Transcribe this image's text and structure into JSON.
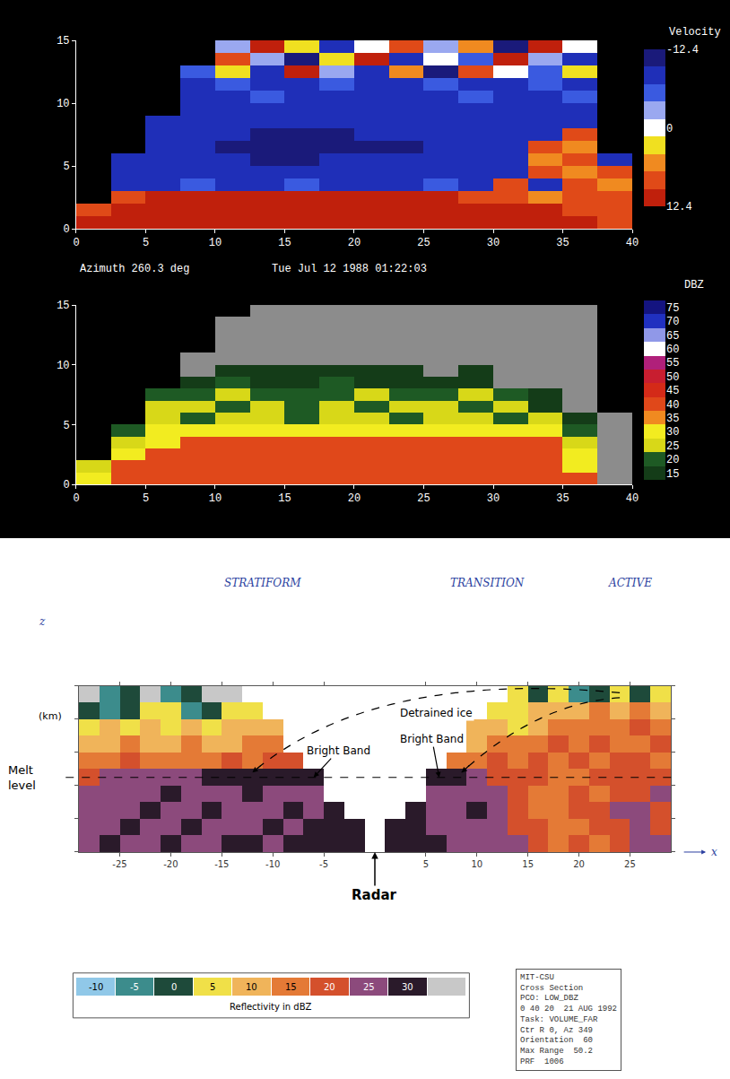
{
  "chart_data": [
    {
      "type": "heatmap",
      "x": [
        1.25,
        3.75,
        6.25,
        8.75,
        11.25,
        13.75,
        16.25,
        18.75,
        21.25,
        23.75,
        26.25,
        28.75,
        31.25,
        33.75,
        36.25,
        38.75
      ],
      "y": [
        0.5,
        1.5,
        2.5,
        3.5,
        4.5,
        5.5,
        6.5,
        7.5,
        8.5,
        9.5,
        10.5,
        11.5,
        12.5,
        13.5,
        14.5
      ],
      "z": [
        [
          10,
          10,
          10,
          10,
          10,
          10,
          10,
          10,
          10,
          10,
          10,
          10,
          10,
          10,
          10,
          8
        ],
        [
          8,
          10,
          10,
          10,
          10,
          10,
          10,
          10,
          10,
          10,
          10,
          10,
          10,
          10,
          8,
          8
        ],
        [
          null,
          8,
          10,
          10,
          10,
          10,
          10,
          10,
          10,
          10,
          10,
          8,
          8,
          5,
          8,
          8
        ],
        [
          null,
          -8,
          -8,
          -5,
          -8,
          -8,
          -5,
          -8,
          -8,
          -8,
          -5,
          -8,
          8,
          -8,
          8,
          5
        ],
        [
          null,
          -8,
          -8,
          -8,
          -8,
          -8,
          -8,
          -8,
          -8,
          -8,
          -8,
          -8,
          -8,
          8,
          5,
          8
        ],
        [
          null,
          -8,
          -8,
          -8,
          -8,
          -11,
          -11,
          -8,
          -8,
          -8,
          -8,
          -8,
          -8,
          5,
          8,
          -8
        ],
        [
          null,
          null,
          -8,
          -8,
          -11,
          -11,
          -11,
          -11,
          -11,
          -11,
          -8,
          -8,
          -8,
          8,
          5,
          null
        ],
        [
          null,
          null,
          -8,
          -8,
          -8,
          -11,
          -11,
          -11,
          -8,
          -8,
          -8,
          -8,
          -8,
          -8,
          8,
          null
        ],
        [
          null,
          null,
          -8,
          -8,
          -8,
          -8,
          -8,
          -8,
          -8,
          -8,
          -8,
          -8,
          -8,
          -8,
          -8,
          null
        ],
        [
          null,
          null,
          null,
          -8,
          -8,
          -8,
          -8,
          -8,
          -8,
          -8,
          -8,
          -8,
          -8,
          -8,
          -8,
          null
        ],
        [
          null,
          null,
          null,
          -8,
          -8,
          -5,
          -8,
          -8,
          -8,
          -8,
          -8,
          -5,
          -8,
          -8,
          -5,
          null
        ],
        [
          null,
          null,
          null,
          -8,
          -5,
          -8,
          -8,
          -5,
          -8,
          -8,
          -5,
          -8,
          -8,
          -5,
          -8,
          null
        ],
        [
          null,
          null,
          null,
          -5,
          3,
          -8,
          10,
          -2,
          -8,
          5,
          -11,
          8,
          0,
          -5,
          3,
          null
        ],
        [
          null,
          null,
          null,
          null,
          8,
          -3,
          -11,
          3,
          10,
          -8,
          0,
          -5,
          11,
          -2,
          -8,
          null
        ],
        [
          null,
          null,
          null,
          null,
          -2,
          10,
          3,
          -8,
          0,
          8,
          -3,
          5,
          -11,
          10,
          0,
          null
        ]
      ],
      "xlim": [
        0,
        40
      ],
      "ylim": [
        0,
        15
      ],
      "xticks": [
        0,
        5,
        10,
        15,
        20,
        25,
        30,
        35,
        40
      ],
      "yticks": [
        0,
        5,
        10,
        15
      ],
      "annotations": [
        "Azimuth 260.3 deg",
        "Tue Jul 12 1988 01:22:03"
      ],
      "colorbar": {
        "title": "Velocity",
        "range": [
          -12.4,
          12.4
        ],
        "ticks": [
          -12.4,
          0,
          12.4
        ],
        "colors": [
          "#1a1a7a",
          "#1f2fb8",
          "#3a5ae0",
          "#9aa8f0",
          "#ffffff",
          "#f0e020",
          "#f08a20",
          "#e04a18",
          "#c0200c"
        ]
      }
    },
    {
      "type": "heatmap",
      "x": [
        1.25,
        3.75,
        6.25,
        8.75,
        11.25,
        13.75,
        16.25,
        18.75,
        21.25,
        23.75,
        26.25,
        28.75,
        31.25,
        33.75,
        36.25,
        38.75
      ],
      "y": [
        0.5,
        1.5,
        2.5,
        3.5,
        4.5,
        5.5,
        6.5,
        7.5,
        8.5,
        9.5,
        10.5,
        11.5,
        12.5,
        13.5,
        14.5
      ],
      "z": [
        [
          32,
          42,
          42,
          42,
          42,
          42,
          42,
          42,
          42,
          42,
          42,
          42,
          42,
          42,
          42,
          12
        ],
        [
          27,
          42,
          42,
          42,
          42,
          42,
          42,
          42,
          42,
          42,
          42,
          42,
          42,
          42,
          32,
          12
        ],
        [
          null,
          32,
          42,
          42,
          42,
          42,
          42,
          42,
          42,
          42,
          42,
          42,
          42,
          42,
          32,
          12
        ],
        [
          null,
          27,
          32,
          42,
          42,
          42,
          42,
          42,
          42,
          42,
          42,
          42,
          42,
          42,
          27,
          12
        ],
        [
          null,
          22,
          32,
          32,
          32,
          32,
          32,
          32,
          32,
          32,
          32,
          32,
          32,
          32,
          22,
          12
        ],
        [
          null,
          null,
          27,
          22,
          27,
          27,
          22,
          27,
          27,
          22,
          27,
          27,
          22,
          27,
          17,
          12
        ],
        [
          null,
          null,
          27,
          27,
          22,
          27,
          22,
          27,
          22,
          27,
          27,
          22,
          27,
          17,
          12,
          null
        ],
        [
          null,
          null,
          22,
          22,
          27,
          22,
          22,
          22,
          27,
          22,
          22,
          27,
          22,
          17,
          12,
          null
        ],
        [
          null,
          null,
          null,
          17,
          22,
          17,
          17,
          22,
          17,
          17,
          17,
          17,
          12,
          12,
          12,
          null
        ],
        [
          null,
          null,
          null,
          12,
          17,
          17,
          17,
          17,
          17,
          17,
          12,
          17,
          12,
          12,
          12,
          null
        ],
        [
          null,
          null,
          null,
          12,
          12,
          12,
          12,
          12,
          12,
          12,
          12,
          12,
          12,
          12,
          12,
          null
        ],
        [
          null,
          null,
          null,
          null,
          12,
          12,
          12,
          12,
          12,
          12,
          12,
          12,
          12,
          12,
          12,
          null
        ],
        [
          null,
          null,
          null,
          null,
          12,
          12,
          12,
          12,
          12,
          12,
          12,
          12,
          12,
          12,
          12,
          null
        ],
        [
          null,
          null,
          null,
          null,
          12,
          12,
          12,
          12,
          12,
          12,
          12,
          12,
          12,
          12,
          12,
          null
        ],
        [
          null,
          null,
          null,
          null,
          null,
          12,
          12,
          12,
          12,
          12,
          12,
          12,
          12,
          12,
          12,
          null
        ]
      ],
      "xlim": [
        0,
        40
      ],
      "ylim": [
        0,
        15
      ],
      "xticks": [
        0,
        5,
        10,
        15,
        20,
        25,
        30,
        35,
        40
      ],
      "yticks": [
        0,
        5,
        10,
        15
      ],
      "colorbar": {
        "title": "DBZ",
        "levels": [
          15,
          20,
          25,
          30,
          35,
          40,
          45,
          50,
          55,
          60,
          65,
          70,
          75
        ],
        "colors": [
          "#143c18",
          "#1e5a24",
          "#d8d818",
          "#f2ec20",
          "#f08a20",
          "#e0481a",
          "#d42a18",
          "#c81e30",
          "#b0207a",
          "#ffffff",
          "#9098e8",
          "#2030c0",
          "#141480"
        ],
        "below_color": "#8c8c8c"
      }
    },
    {
      "type": "heatmap",
      "x": [
        -28,
        -26,
        -24,
        -22,
        -20,
        -18,
        -16,
        -14,
        -12,
        -10,
        -8,
        -6,
        -4,
        -2,
        0,
        2,
        4,
        6,
        8,
        10,
        12,
        14,
        16,
        18,
        20,
        22,
        24,
        26,
        28
      ],
      "y": [
        0.5,
        1.5,
        2.5,
        3.5,
        4.5,
        5.5,
        6.5,
        7.5,
        8.5,
        9.5
      ],
      "z": [
        [
          27,
          32,
          27,
          27,
          32,
          27,
          27,
          32,
          32,
          27,
          32,
          32,
          32,
          32,
          null,
          32,
          32,
          32,
          27,
          27,
          27,
          27,
          22,
          17,
          22,
          17,
          22,
          27,
          27
        ],
        [
          27,
          27,
          32,
          27,
          27,
          32,
          27,
          27,
          27,
          32,
          27,
          32,
          32,
          32,
          null,
          32,
          32,
          27,
          27,
          27,
          27,
          22,
          22,
          17,
          17,
          22,
          22,
          27,
          22
        ],
        [
          27,
          27,
          27,
          32,
          27,
          27,
          32,
          27,
          27,
          27,
          32,
          27,
          32,
          null,
          null,
          null,
          32,
          27,
          27,
          32,
          27,
          22,
          17,
          17,
          22,
          22,
          27,
          27,
          22
        ],
        [
          27,
          27,
          27,
          27,
          32,
          27,
          27,
          27,
          32,
          27,
          27,
          27,
          null,
          null,
          null,
          null,
          null,
          27,
          27,
          27,
          27,
          22,
          17,
          17,
          22,
          17,
          22,
          22,
          27
        ],
        [
          22,
          27,
          27,
          27,
          27,
          27,
          32,
          32,
          32,
          32,
          32,
          32,
          null,
          null,
          null,
          null,
          null,
          32,
          32,
          27,
          22,
          22,
          22,
          17,
          17,
          22,
          22,
          22,
          22
        ],
        [
          17,
          17,
          22,
          17,
          17,
          17,
          17,
          22,
          17,
          22,
          22,
          null,
          null,
          null,
          null,
          null,
          null,
          null,
          17,
          17,
          22,
          17,
          22,
          17,
          22,
          17,
          22,
          22,
          17
        ],
        [
          12,
          12,
          17,
          12,
          12,
          17,
          12,
          12,
          17,
          17,
          null,
          null,
          null,
          null,
          null,
          null,
          null,
          null,
          null,
          12,
          17,
          17,
          17,
          22,
          17,
          22,
          17,
          17,
          22
        ],
        [
          7,
          12,
          7,
          12,
          7,
          12,
          7,
          12,
          12,
          12,
          null,
          null,
          null,
          null,
          null,
          null,
          null,
          null,
          null,
          12,
          12,
          7,
          12,
          17,
          17,
          17,
          17,
          22,
          17
        ],
        [
          2,
          -3,
          2,
          7,
          7,
          -3,
          2,
          7,
          7,
          null,
          null,
          null,
          null,
          null,
          null,
          null,
          null,
          null,
          null,
          null,
          7,
          7,
          12,
          12,
          12,
          17,
          12,
          17,
          12
        ],
        [
          -13,
          -3,
          2,
          -13,
          -3,
          2,
          -13,
          -13,
          null,
          null,
          null,
          null,
          null,
          null,
          null,
          null,
          null,
          null,
          null,
          null,
          null,
          7,
          2,
          7,
          -3,
          2,
          7,
          2,
          7
        ]
      ],
      "xlim": [
        -29,
        29
      ],
      "ylim": [
        0,
        10
      ],
      "xticks": [
        -25,
        -20,
        -15,
        -10,
        -5,
        5,
        10,
        15,
        20,
        25
      ],
      "yticks": [
        0,
        2,
        4,
        6,
        8,
        10
      ],
      "tick_labels": "x",
      "region_labels": [
        "STRATIFORM",
        "TRANSITION",
        "ACTIVE"
      ],
      "annotations": {
        "detrained_ice": "Detrained ice",
        "bright_band": "Bright Band",
        "melt_level": "Melt level",
        "radar": "Radar"
      },
      "axis_labels": {
        "z": "z",
        "units": "(km)",
        "x": "x"
      },
      "melt_level": 4.5,
      "info_box": [
        "MIT-CSU",
        "Cross Section",
        "PCO: LOW_DBZ",
        "0 40 20  21 AUG 1992",
        "Task: VOLUME_FAR",
        "Ctr R 0, Az 349",
        "Orientation  60",
        "Max Range  50.2",
        "PRF  1006"
      ],
      "colorbar": {
        "title": "Reflectivity in dBZ",
        "levels": [
          -10,
          -5,
          0,
          5,
          10,
          15,
          20,
          25,
          30
        ],
        "colors": [
          "#90c8e8",
          "#3c8c8c",
          "#1e4a3a",
          "#f0e048",
          "#f0b45a",
          "#e47a36",
          "#d4502c",
          "#8c4a7c",
          "#2a1a2a"
        ],
        "below_color": "#c8c8c8"
      }
    }
  ]
}
